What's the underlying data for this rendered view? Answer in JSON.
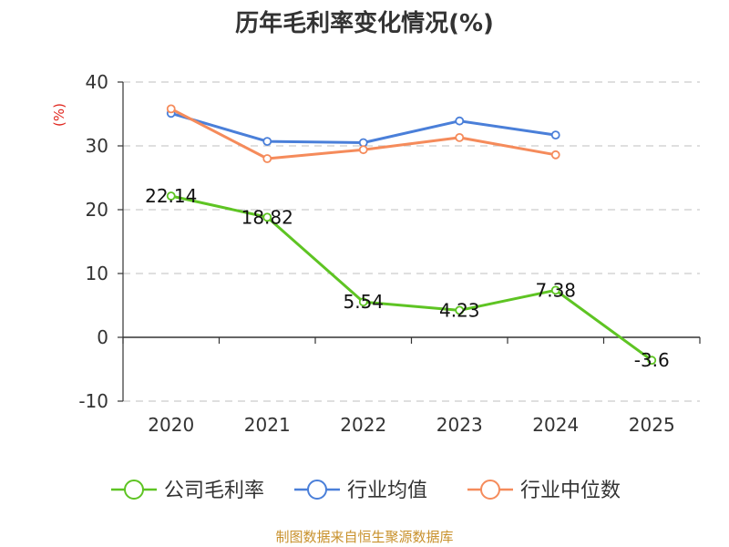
{
  "chart_data": {
    "type": "line",
    "title": "历年毛利率变化情况(%)",
    "y_unit": "(%)",
    "categories": [
      "2020",
      "2021",
      "2022",
      "2023",
      "2024",
      "2025"
    ],
    "ylim": [
      -10,
      40
    ],
    "yticks": [
      "40",
      "30",
      "20",
      "10",
      "0",
      "-10"
    ],
    "grid": true,
    "legend_position": "bottom",
    "series": [
      {
        "name": "公司毛利率",
        "color": "#5ec423",
        "values": [
          22.14,
          18.82,
          5.54,
          4.23,
          7.38,
          -3.6
        ],
        "labels": [
          "22.14",
          "18.82",
          "5.54",
          "4.23",
          "7.38",
          "-3.6"
        ]
      },
      {
        "name": "行业均值",
        "color": "#4a7fd9",
        "values": [
          35.1,
          30.7,
          30.5,
          33.9,
          31.7,
          null
        ]
      },
      {
        "name": "行业中位数",
        "color": "#f58b5b",
        "values": [
          35.8,
          28.0,
          29.4,
          31.3,
          28.6,
          null
        ]
      }
    ]
  },
  "source": "制图数据来自恒生聚源数据库"
}
